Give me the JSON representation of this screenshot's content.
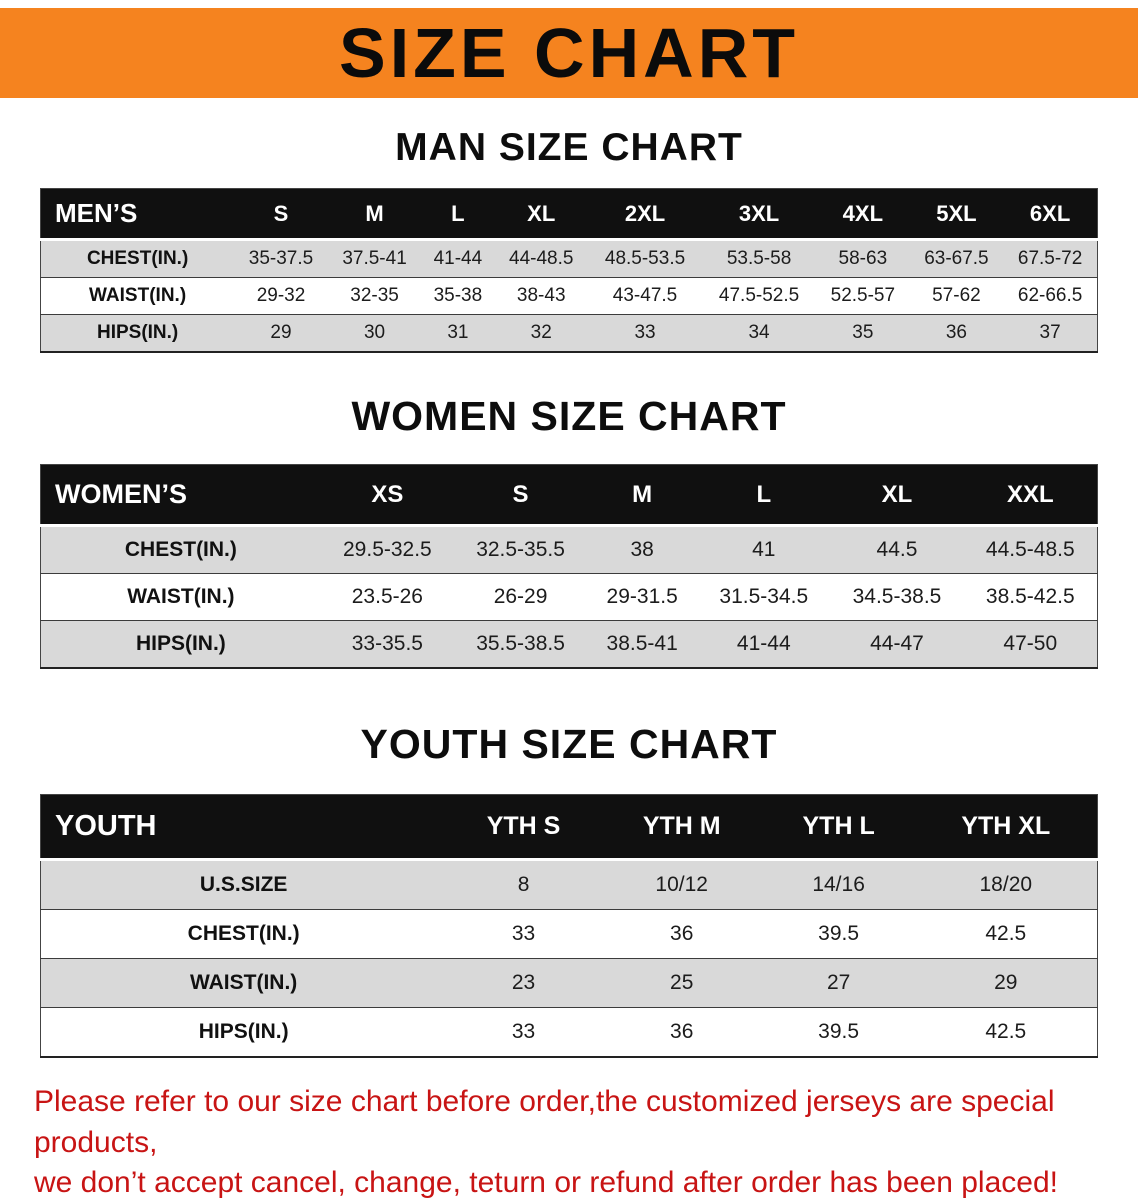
{
  "banner": {
    "title": "SIZE CHART"
  },
  "headings": {
    "men": "MAN SIZE CHART",
    "women": "WOMEN SIZE CHART",
    "youth": "YOUTH SIZE CHART"
  },
  "men_table": {
    "corner": "MEN’S",
    "columns": [
      "S",
      "M",
      "L",
      "XL",
      "2XL",
      "3XL",
      "4XL",
      "5XL",
      "6XL"
    ],
    "rows": [
      {
        "label": "CHEST(IN.)",
        "values": [
          "35-37.5",
          "37.5-41",
          "41-44",
          "44-48.5",
          "48.5-53.5",
          "53.5-58",
          "58-63",
          "63-67.5",
          "67.5-72"
        ]
      },
      {
        "label": "WAIST(IN.)",
        "values": [
          "29-32",
          "32-35",
          "35-38",
          "38-43",
          "43-47.5",
          "47.5-52.5",
          "52.5-57",
          "57-62",
          "62-66.5"
        ]
      },
      {
        "label": "HIPS(IN.)",
        "values": [
          "29",
          "30",
          "31",
          "32",
          "33",
          "34",
          "35",
          "36",
          "37"
        ]
      }
    ]
  },
  "women_table": {
    "corner": "WOMEN’S",
    "columns": [
      "XS",
      "S",
      "M",
      "L",
      "XL",
      "XXL"
    ],
    "rows": [
      {
        "label": "CHEST(IN.)",
        "values": [
          "29.5-32.5",
          "32.5-35.5",
          "38",
          "41",
          "44.5",
          "44.5-48.5"
        ]
      },
      {
        "label": "WAIST(IN.)",
        "values": [
          "23.5-26",
          "26-29",
          "29-31.5",
          "31.5-34.5",
          "34.5-38.5",
          "38.5-42.5"
        ]
      },
      {
        "label": "HIPS(IN.)",
        "values": [
          "33-35.5",
          "35.5-38.5",
          "38.5-41",
          "41-44",
          "44-47",
          "47-50"
        ]
      }
    ]
  },
  "youth_table": {
    "corner": "YOUTH",
    "columns": [
      "YTH S",
      "YTH M",
      "YTH L",
      "YTH XL"
    ],
    "rows": [
      {
        "label": "U.S.SIZE",
        "values": [
          "8",
          "10/12",
          "14/16",
          "18/20"
        ]
      },
      {
        "label": "CHEST(IN.)",
        "values": [
          "33",
          "36",
          "39.5",
          "42.5"
        ]
      },
      {
        "label": "WAIST(IN.)",
        "values": [
          "23",
          "25",
          "27",
          "29"
        ]
      },
      {
        "label": "HIPS(IN.)",
        "values": [
          "33",
          "36",
          "39.5",
          "42.5"
        ]
      }
    ]
  },
  "footer": {
    "line1": "Please refer to our size chart before order,the customized jerseys are special products,",
    "line2": "we don’t accept cancel, change, teturn or refund after order has been placed!"
  },
  "colors": {
    "banner_bg": "#f5831f",
    "table_header_bg": "#101010",
    "row_alt_bg": "#d9d9d9",
    "footer_text": "#c81414"
  }
}
